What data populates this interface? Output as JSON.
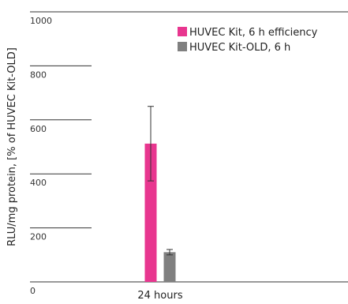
{
  "chart_data": {
    "type": "bar",
    "categories": [
      "24 hours"
    ],
    "series": [
      {
        "name": "HUVEC Kit, 6 h efficiency",
        "values": [
          512
        ],
        "error": [
          138
        ],
        "color": "#e8368f"
      },
      {
        "name": "HUVEC Kit-OLD, 6 h",
        "values": [
          110
        ],
        "error": [
          10
        ],
        "color": "#808080"
      }
    ],
    "ylabel": "RLU/mg protein, [% of HUVEC Kit-OLD]",
    "xlabel": "",
    "ylim": [
      0,
      1000
    ],
    "yticks": [
      0,
      200,
      400,
      600,
      800,
      1000
    ],
    "grid": false,
    "legend_position": "top-right"
  }
}
